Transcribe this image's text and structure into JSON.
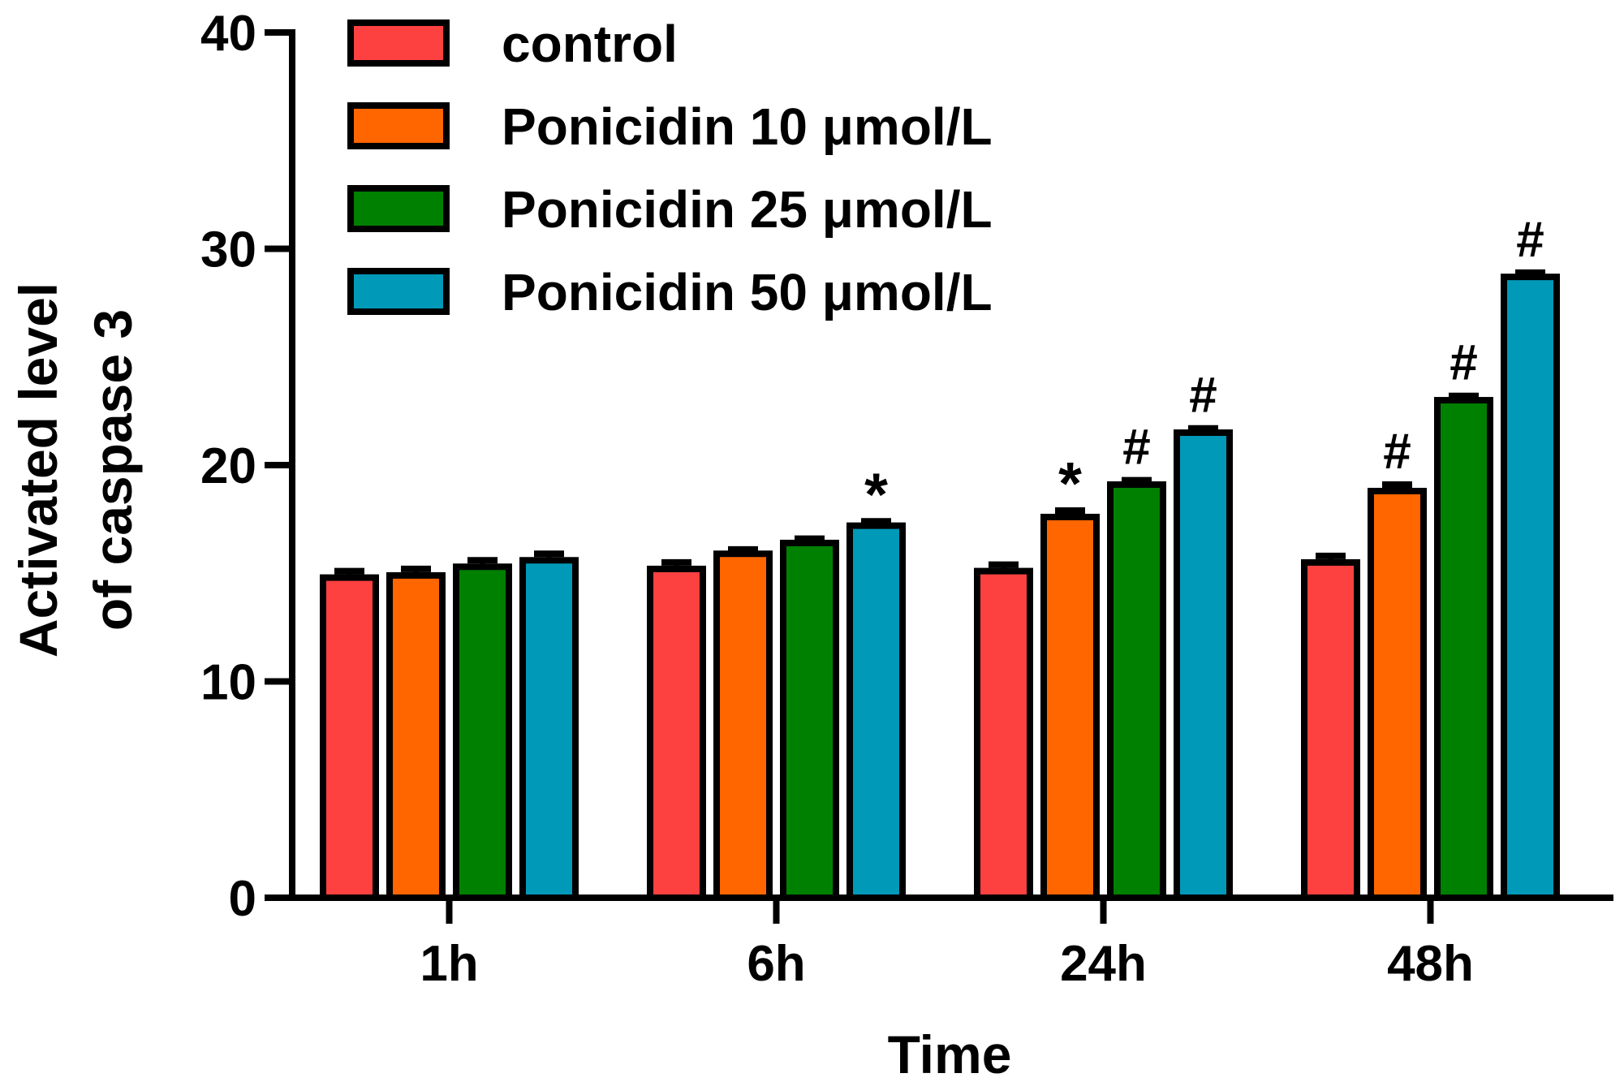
{
  "chart_data": {
    "type": "bar",
    "title": "",
    "xlabel": "Time",
    "ylabel_lines": [
      "Activated level",
      "of caspase 3"
    ],
    "ylim": [
      0,
      40
    ],
    "yticks": [
      0,
      10,
      20,
      30,
      40
    ],
    "categories": [
      "1h",
      "6h",
      "24h",
      "48h"
    ],
    "series": [
      {
        "name": "control",
        "color": "#fd4040",
        "values": [
          14.8,
          15.2,
          15.1,
          15.5
        ],
        "errors": [
          0.3,
          0.3,
          0.3,
          0.3
        ],
        "annotations": [
          "",
          "",
          "",
          ""
        ]
      },
      {
        "name": "Ponicidin 10 μmol/L",
        "color": "#ff6600",
        "values": [
          14.9,
          15.9,
          17.6,
          18.8
        ],
        "errors": [
          0.3,
          0.2,
          0.3,
          0.3
        ],
        "annotations": [
          "",
          "",
          "*",
          "#"
        ]
      },
      {
        "name": "Ponicidin 25 μmol/L",
        "color": "#008000",
        "values": [
          15.3,
          16.4,
          19.1,
          23.0
        ],
        "errors": [
          0.3,
          0.2,
          0.2,
          0.2
        ],
        "annotations": [
          "",
          "",
          "#",
          "#"
        ]
      },
      {
        "name": "Ponicidin 50 μmol/L",
        "color": "#009ab8",
        "values": [
          15.6,
          17.2,
          21.5,
          28.7
        ],
        "errors": [
          0.3,
          0.2,
          0.2,
          0.2
        ],
        "annotations": [
          "",
          "*",
          "#",
          "#"
        ]
      }
    ],
    "legend_position": "top-left"
  }
}
